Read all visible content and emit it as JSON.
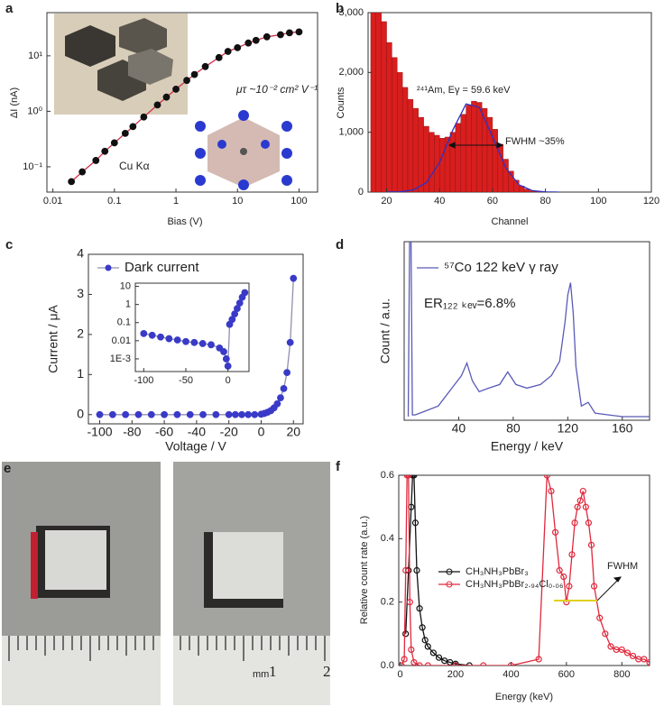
{
  "chart_data": [
    {
      "type": "scatter",
      "panel_label": "a",
      "xlabel": "Bias (V)",
      "ylabel": "ΔI (nA)",
      "xscale": "log",
      "yscale": "log",
      "xlim": [
        0.008,
        200
      ],
      "ylim": [
        0.035,
        60
      ],
      "xticks": [
        0.01,
        0.1,
        1,
        10,
        100
      ],
      "yticks": [
        {
          "value": 0.1,
          "label": "10⁻¹"
        },
        {
          "value": 1,
          "label": "10⁰"
        },
        {
          "value": 10,
          "label": "10¹"
        }
      ],
      "annotations": [
        "μτ ~10⁻² cm² V⁻¹",
        "Cu Kα"
      ],
      "series": [
        {
          "color": "#d0304a",
          "line": true,
          "x": [
            0.02,
            0.03,
            0.05,
            0.07,
            0.1,
            0.15,
            0.2,
            0.3,
            0.5,
            0.7,
            1,
            1.5,
            2,
            3,
            5,
            7,
            10,
            15,
            20,
            30,
            50,
            70,
            100
          ],
          "values": [
            0.054,
            0.081,
            0.13,
            0.19,
            0.27,
            0.4,
            0.53,
            0.79,
            1.3,
            1.8,
            2.5,
            3.6,
            4.6,
            6.4,
            9.3,
            12,
            14,
            17,
            19,
            22,
            24,
            26,
            27
          ]
        },
        {
          "color": "#111111",
          "marker": "circle",
          "x": [
            0.02,
            0.03,
            0.05,
            0.07,
            0.1,
            0.15,
            0.2,
            0.3,
            0.5,
            0.7,
            1,
            1.5,
            2,
            3,
            5,
            7,
            10,
            15,
            20,
            30,
            50,
            70,
            100
          ],
          "values": [
            0.054,
            0.081,
            0.13,
            0.19,
            0.27,
            0.4,
            0.53,
            0.79,
            1.3,
            1.8,
            2.5,
            3.6,
            4.6,
            6.4,
            9.3,
            12,
            14,
            17,
            19,
            22,
            24,
            26,
            27
          ]
        }
      ]
    },
    {
      "type": "histogram",
      "panel_label": "b",
      "xlabel": "Channel",
      "ylabel": "Counts",
      "color": "#d81e1e",
      "xlim": [
        13,
        120
      ],
      "ylim": [
        0,
        3000
      ],
      "xticks": [
        20,
        40,
        60,
        80,
        100,
        120
      ],
      "yticks": [
        0,
        {
          "value": 1000,
          "label": "1,000"
        },
        {
          "value": 2000,
          "label": "2,000"
        },
        {
          "value": 3000,
          "label": "3,000"
        }
      ],
      "bins": [
        14,
        16,
        18,
        20,
        22,
        24,
        26,
        28,
        30,
        32,
        34,
        36,
        38,
        40,
        42,
        44,
        46,
        48,
        50,
        52,
        54,
        56,
        58,
        60,
        62,
        64,
        66,
        68,
        70,
        72,
        74,
        76,
        78,
        80
      ],
      "values": [
        3000,
        3000,
        2850,
        2500,
        2250,
        2000,
        1750,
        1550,
        1400,
        1250,
        1100,
        1000,
        950,
        900,
        920,
        1000,
        1150,
        1300,
        1450,
        1520,
        1500,
        1400,
        1250,
        1050,
        800,
        550,
        350,
        200,
        100,
        50,
        20,
        10,
        5
      ],
      "annotations": [
        "²⁴¹Am, Eγ = 59.6 keV",
        "FWHM ~35%"
      ],
      "series": [
        {
          "color": "#3030c0",
          "line": true,
          "x": [
            20,
            25,
            30,
            35,
            40,
            45,
            50,
            55,
            60,
            65,
            70,
            75,
            80,
            85
          ],
          "values": [
            1,
            5,
            35,
            159,
            494,
            1037,
            1473,
            1417,
            922,
            406,
            121,
            24,
            3,
            0
          ]
        }
      ]
    },
    {
      "type": "line",
      "panel_label": "c",
      "xlabel": "Voltage / V",
      "ylabel": "Current / μA",
      "legend": "upper left",
      "xlim": [
        -107,
        26
      ],
      "ylim": [
        -0.23,
        4
      ],
      "xticks": [
        -100,
        -80,
        -60,
        -40,
        -20,
        0,
        20
      ],
      "yticks": [
        0,
        1,
        2,
        3,
        4
      ],
      "series": [
        {
          "name": "Dark current",
          "color": "#3a3ac8",
          "line_color": "#9090b0",
          "line": true,
          "marker": "circle",
          "x": [
            -100,
            -92,
            -84,
            -76,
            -68,
            -60,
            -52,
            -44,
            -36,
            -28,
            -20,
            -16,
            -12,
            -8,
            -4,
            0,
            2,
            4,
            6,
            8,
            10,
            12,
            14,
            16,
            18,
            20
          ],
          "values": [
            0,
            0,
            0,
            0,
            0,
            0,
            0,
            0,
            0,
            0,
            0,
            0,
            0,
            0,
            0,
            0.01,
            0.03,
            0.06,
            0.1,
            0.17,
            0.27,
            0.42,
            0.65,
            1.05,
            1.8,
            3.4
          ]
        }
      ]
    },
    {
      "type": "line",
      "yscale": "log",
      "xlim": [
        -110,
        25
      ],
      "ylim": [
        0.0002,
        15
      ],
      "xticks": [
        -100,
        -50,
        0
      ],
      "yticks": [
        10,
        1,
        0.1,
        0.01,
        {
          "value": 0.001,
          "label": "1E-3"
        }
      ],
      "series": [
        {
          "color": "#3a3ac8",
          "line_color": "#9090b0",
          "line": true,
          "marker": "circle",
          "x": [
            -100,
            -90,
            -80,
            -70,
            -60,
            -50,
            -40,
            -30,
            -20,
            -10,
            -5,
            -2,
            0,
            2,
            5,
            8,
            11,
            14,
            17,
            20
          ],
          "values": [
            0.025,
            0.02,
            0.016,
            0.013,
            0.011,
            0.009,
            0.008,
            0.007,
            0.006,
            0.004,
            0.0025,
            0.001,
            0.0004,
            0.08,
            0.15,
            0.3,
            0.6,
            1.2,
            2.5,
            4.5
          ]
        }
      ]
    },
    {
      "type": "line",
      "panel_label": "d",
      "xlabel": "Energy / keV",
      "ylabel": "Count / a.u.",
      "legend": "upper left",
      "xlim": [
        0,
        180
      ],
      "ylim": [
        0,
        1
      ],
      "xticks": [
        40,
        80,
        120,
        160
      ],
      "yticks": [],
      "annotations": [
        "ER₁₂₂ ₖₑᵥ=6.8%"
      ],
      "series": [
        {
          "name": "⁵⁷Co 122 keV γ ray",
          "color": "#5a5ab8",
          "line": true,
          "x": [
            3,
            4,
            5,
            6,
            8,
            15,
            25,
            35,
            42,
            46,
            50,
            55,
            62,
            70,
            76,
            82,
            90,
            100,
            108,
            114,
            118,
            120,
            122,
            124,
            126,
            130,
            135,
            140,
            150,
            160,
            170,
            180
          ],
          "values": [
            0.02,
            1,
            1,
            0.03,
            0.03,
            0.05,
            0.08,
            0.18,
            0.25,
            0.32,
            0.22,
            0.16,
            0.18,
            0.2,
            0.27,
            0.2,
            0.18,
            0.2,
            0.25,
            0.33,
            0.55,
            0.7,
            0.77,
            0.6,
            0.3,
            0.08,
            0.1,
            0.04,
            0.03,
            0.02,
            0.02,
            0.02
          ]
        }
      ]
    },
    {
      "type": "line",
      "panel_label": "f",
      "xlabel": "Energy (keV)",
      "ylabel": "Relative count rate (a.u.)",
      "legend": "center left",
      "xlim": [
        -5,
        900
      ],
      "ylim": [
        0,
        0.6
      ],
      "xticks": [
        0,
        200,
        400,
        600,
        800
      ],
      "yticks": [
        {
          "value": 0,
          "label": "0.0"
        },
        0.2,
        0.4,
        0.6
      ],
      "annotations": [
        "FWHM"
      ],
      "series": [
        {
          "name": "CH₃NH₃PbBr₃",
          "color": "#111111",
          "line": true,
          "marker": "ring",
          "x": [
            20,
            30,
            40,
            45,
            50,
            55,
            60,
            70,
            80,
            90,
            100,
            120,
            140,
            160,
            180,
            200,
            250
          ],
          "values": [
            0.1,
            0.3,
            0.5,
            0.6,
            0.6,
            0.45,
            0.3,
            0.18,
            0.12,
            0.08,
            0.06,
            0.04,
            0.025,
            0.015,
            0.01,
            0.005,
            0
          ]
        },
        {
          "name": "CH₃NH₃PbBr₂.₉₄Cl₀.₀₆",
          "color": "#e0283c",
          "line": true,
          "marker": "ring",
          "x": [
            5,
            15,
            20,
            25,
            30,
            35,
            40,
            50,
            70,
            100,
            200,
            300,
            400,
            500,
            530,
            545,
            560,
            575,
            590,
            600,
            610,
            620,
            630,
            640,
            650,
            660,
            670,
            680,
            690,
            700,
            720,
            740,
            760,
            780,
            800,
            820,
            840,
            860,
            880,
            900
          ],
          "values": [
            0,
            0.02,
            0.3,
            0.6,
            0.6,
            0.2,
            0.05,
            0.01,
            0,
            0,
            0,
            0,
            0,
            0.02,
            0.6,
            0.55,
            0.42,
            0.3,
            0.28,
            0.2,
            0.25,
            0.35,
            0.45,
            0.5,
            0.52,
            0.55,
            0.5,
            0.45,
            0.38,
            0.25,
            0.15,
            0.1,
            0.06,
            0.05,
            0.05,
            0.04,
            0.03,
            0.02,
            0.02,
            0.01
          ]
        }
      ]
    }
  ],
  "photo_panel": {
    "panel_label": "e",
    "ruler_labels": [
      "mm",
      "1",
      "2"
    ]
  }
}
